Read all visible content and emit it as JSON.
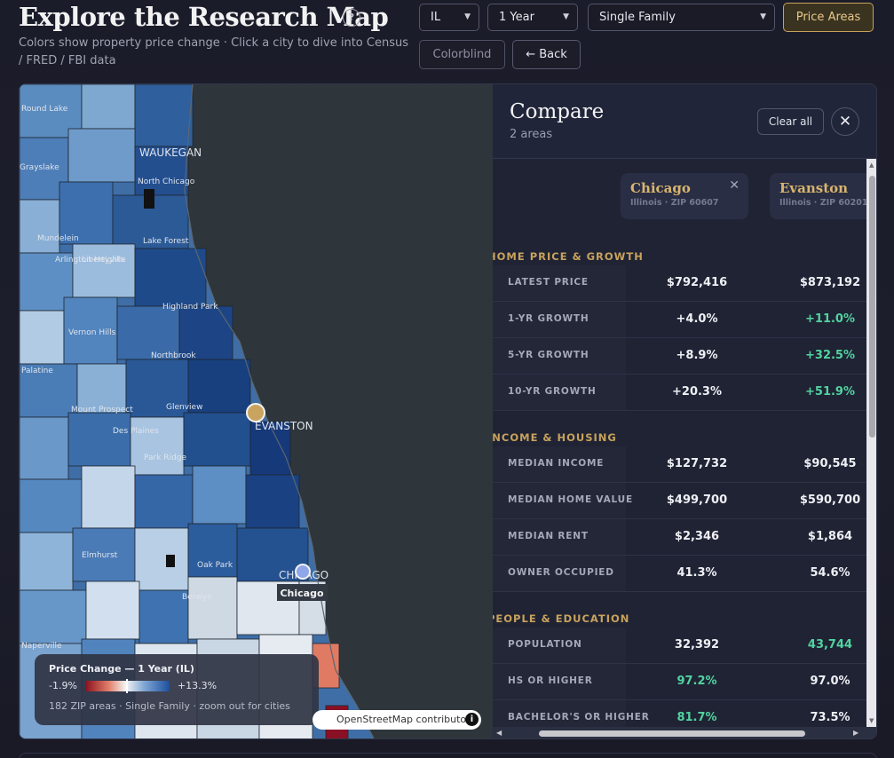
{
  "header": {
    "title": "Explore the Research Map",
    "help_icon": "?",
    "subtitle": "Colors show property price change  ·  Click a city to dive into Census / FRED / FBI data"
  },
  "controls": {
    "state": "IL",
    "period": "1 Year",
    "property_type": "Single Family",
    "price_areas_label": "Price Areas",
    "colorblind_label": "Colorblind",
    "back_label": "← Back"
  },
  "map": {
    "labels": {
      "waukegan": "WAUKEGAN",
      "north_chicago": "North Chicago",
      "lake_forest": "Lake Forest",
      "mundelein": "Mundelein",
      "highland_park": "Highland Park",
      "northbrook": "Northbrook",
      "glenview": "Glenview",
      "evanston": "EVANSTON",
      "des_plaines": "Des Plaines",
      "park_ridge": "Park Ridge",
      "chicago": "CHICAGO",
      "mount_prospect": "Mount Prospect",
      "elmhurst": "Elmhurst",
      "oak_park": "Oak Park",
      "berwyn": "Berwyn",
      "palatine": "Palatine",
      "arlington_heights": "Arlington Heights",
      "vernon_hills": "Vernon Hills",
      "round_lake": "Round Lake",
      "naperville": "Naperville",
      "grayslake": "Grayslake",
      "libertyville": "Libertyville"
    },
    "chicago_tooltip": "Chicago",
    "attribution": "OpenStreetMap contributors",
    "info_icon": "i"
  },
  "legend": {
    "title": "Price Change — 1 Year (IL)",
    "min": "-1.9%",
    "max": "+13.3%",
    "note": "182 ZIP areas · Single Family · zoom out for cities"
  },
  "compare": {
    "title": "Compare",
    "subtitle": "2 areas",
    "clear_all": "Clear all",
    "close_icon": "✕",
    "areas": [
      {
        "name": "Chicago",
        "meta": "Illinois · ZIP 60607",
        "remove_icon": "✕"
      },
      {
        "name": "Evanston",
        "meta": "Illinois · ZIP 60201"
      }
    ],
    "sections": [
      {
        "title": "HOME PRICE & GROWTH",
        "rows": [
          {
            "label": "LATEST PRICE",
            "v1": "$792,416",
            "v2": "$873,192",
            "v1_good": false,
            "v2_good": false
          },
          {
            "label": "1-YR GROWTH",
            "v1": "+4.0%",
            "v2": "+11.0%",
            "v1_good": false,
            "v2_good": true
          },
          {
            "label": "5-YR GROWTH",
            "v1": "+8.9%",
            "v2": "+32.5%",
            "v1_good": false,
            "v2_good": true
          },
          {
            "label": "10-YR GROWTH",
            "v1": "+20.3%",
            "v2": "+51.9%",
            "v1_good": false,
            "v2_good": true
          }
        ]
      },
      {
        "title": "INCOME & HOUSING",
        "rows": [
          {
            "label": "MEDIAN INCOME",
            "v1": "$127,732",
            "v2": "$90,545",
            "v1_good": false,
            "v2_good": false
          },
          {
            "label": "MEDIAN HOME VALUE",
            "v1": "$499,700",
            "v2": "$590,700",
            "v1_good": false,
            "v2_good": false
          },
          {
            "label": "MEDIAN RENT",
            "v1": "$2,346",
            "v2": "$1,864",
            "v1_good": false,
            "v2_good": false
          },
          {
            "label": "OWNER OCCUPIED",
            "v1": "41.3%",
            "v2": "54.6%",
            "v1_good": false,
            "v2_good": false
          }
        ]
      },
      {
        "title": "PEOPLE & EDUCATION",
        "rows": [
          {
            "label": "POPULATION",
            "v1": "32,392",
            "v2": "43,744",
            "v1_good": false,
            "v2_good": true
          },
          {
            "label": "HS OR HIGHER",
            "v1": "97.2%",
            "v2": "97.0%",
            "v1_good": true,
            "v2_good": false
          },
          {
            "label": "BACHELOR'S OR HIGHER",
            "v1": "81.7%",
            "v2": "73.5%",
            "v1_good": true,
            "v2_good": false
          }
        ]
      }
    ]
  },
  "colors": {
    "accent_gold": "#c8a25c",
    "good_green": "#52d3a0",
    "background": "#1b1c2a"
  }
}
